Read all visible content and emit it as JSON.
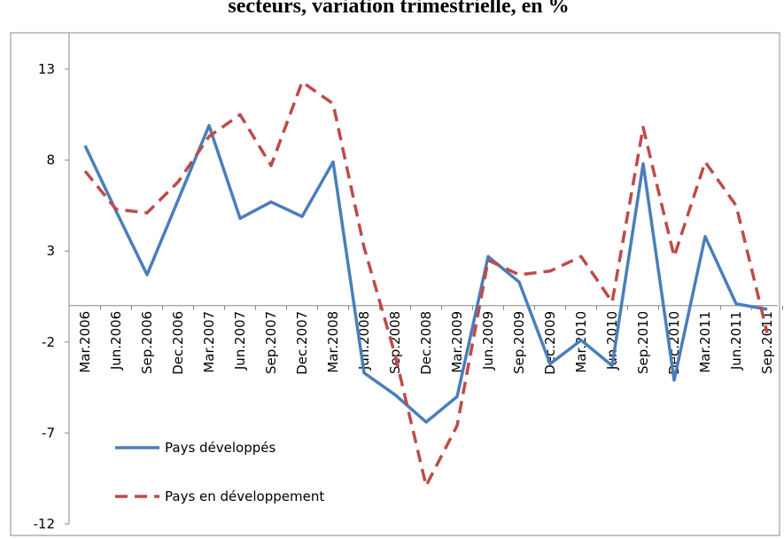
{
  "chart_data": {
    "type": "line",
    "title": "secteurs, variation trimestrielle, en %",
    "categories": [
      "Mar.2006",
      "Jun.2006",
      "Sep.2006",
      "Dec.2006",
      "Mar.2007",
      "Jun.2007",
      "Sep.2007",
      "Dec.2007",
      "Mar.2008",
      "Jun.2008",
      "Sep.2008",
      "Dec.2008",
      "Mar.2009",
      "Jun.2009",
      "Sep.2009",
      "Dec.2009",
      "Mar.2010",
      "Jun.2010",
      "Sep.2010",
      "Dec.2010",
      "Mar.2011",
      "Jun.2011",
      "Sep.2011"
    ],
    "series": [
      {
        "name": "Pays développés",
        "color": "#4a7ebb",
        "dash": false,
        "values": [
          8.8,
          5.2,
          1.7,
          5.8,
          9.9,
          4.8,
          5.7,
          4.9,
          7.9,
          -3.7,
          -4.9,
          -6.4,
          -5.0,
          2.7,
          1.3,
          -3.2,
          -1.9,
          -3.3,
          7.8,
          -4.1,
          3.8,
          0.1,
          -0.2
        ]
      },
      {
        "name": "Pays en développement",
        "color": "#be4b48",
        "dash": true,
        "values": [
          7.4,
          5.3,
          5.1,
          6.8,
          9.3,
          10.5,
          7.7,
          12.3,
          11.1,
          3.2,
          -2.7,
          -9.9,
          -6.6,
          2.5,
          1.7,
          1.9,
          2.7,
          0.2,
          9.8,
          2.7,
          7.9,
          5.5,
          -1.5
        ]
      }
    ],
    "ylim": [
      -12,
      15
    ],
    "yticks": [
      -12,
      -7,
      -2,
      3,
      8,
      13
    ],
    "grid": false,
    "legend": "bottom-left"
  }
}
